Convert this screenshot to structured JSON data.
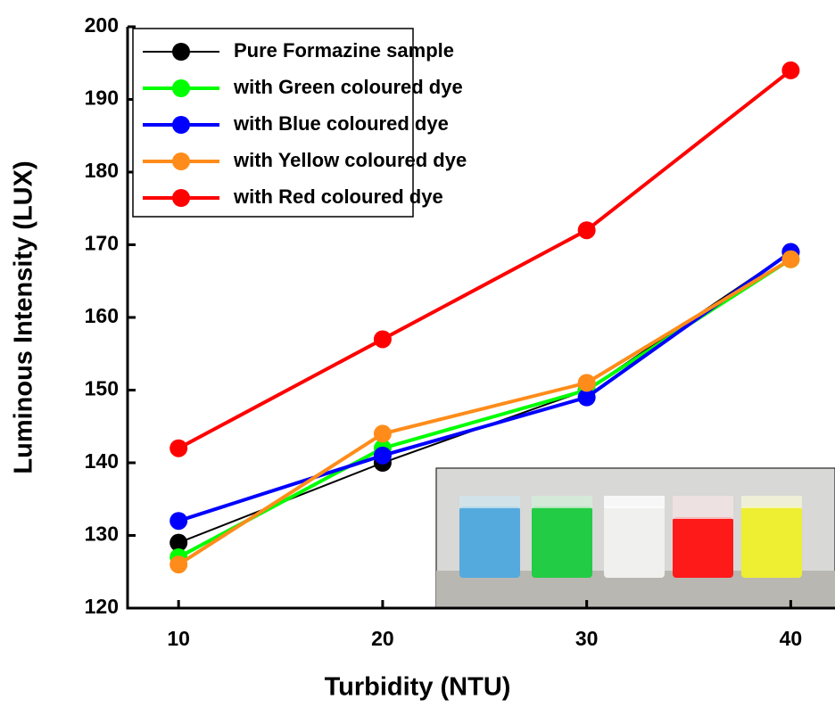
{
  "chart_data": {
    "type": "line",
    "x_label": "Turbidity (NTU)",
    "y_label": "Luminous Intensity (LUX)",
    "x": [
      10,
      20,
      30,
      40
    ],
    "series": [
      {
        "name": "Pure Formazine sample",
        "color": "#000000",
        "width": 2,
        "values": [
          129,
          140,
          150,
          169
        ]
      },
      {
        "name": "with Green coloured dye",
        "color": "#00ff00",
        "width": 4,
        "values": [
          127,
          142,
          150,
          168
        ]
      },
      {
        "name": "with Blue coloured dye",
        "color": "#0000ff",
        "width": 4,
        "values": [
          132,
          141,
          149,
          169
        ]
      },
      {
        "name": "with Yellow coloured dye",
        "color": "#ff8c1a",
        "width": 4,
        "values": [
          126,
          144,
          151,
          168
        ]
      },
      {
        "name": "with Red coloured dye",
        "color": "#ff0000",
        "width": 4,
        "values": [
          142,
          157,
          172,
          194
        ]
      }
    ],
    "xlim": [
      7.5,
      42.3
    ],
    "ylim": [
      120,
      200
    ],
    "xticks": [
      10,
      20,
      30,
      40
    ],
    "yticks": [
      120,
      130,
      140,
      150,
      160,
      170,
      180,
      190,
      200
    ],
    "legend": "upper left"
  }
}
